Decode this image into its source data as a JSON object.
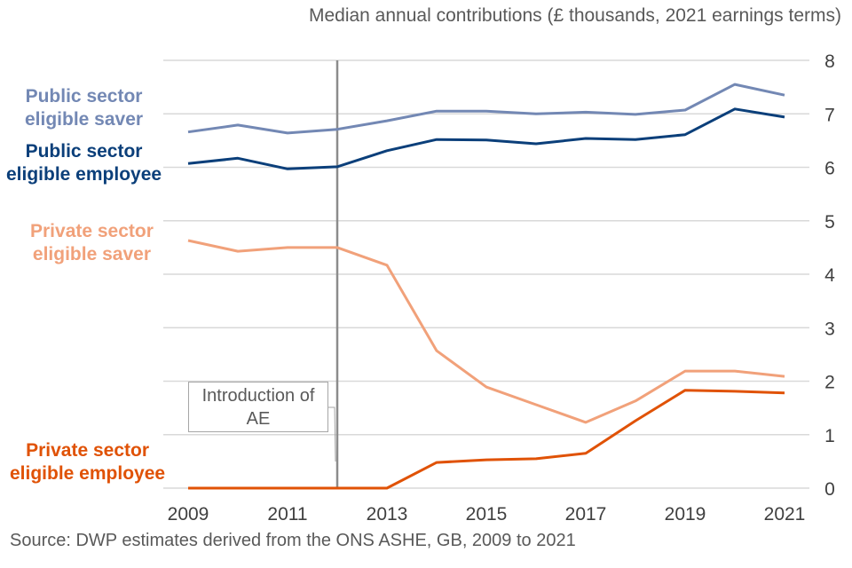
{
  "chart_data": {
    "type": "line",
    "title": "",
    "ylabel": "Median annual contributions (£ thousands, 2021 earnings terms)",
    "xlabel": "",
    "source": "Source: DWP estimates derived from the ONS ASHE, GB, 2009 to 2021",
    "x": [
      2009,
      2010,
      2011,
      2012,
      2013,
      2014,
      2015,
      2016,
      2017,
      2018,
      2019,
      2020,
      2021
    ],
    "x_tick_labels": [
      "2009",
      "2011",
      "2013",
      "2015",
      "2017",
      "2019",
      "2021"
    ],
    "y_tick_labels": [
      "0",
      "1",
      "2",
      "3",
      "4",
      "5",
      "6",
      "7",
      "8"
    ],
    "ylim": [
      0,
      8
    ],
    "grid": true,
    "y_axis_side": "right",
    "legend": "inline-left",
    "series": [
      {
        "name": "Public sector eligible saver",
        "label_lines": [
          "Public sector",
          "eligible saver"
        ],
        "color": "#7388b4",
        "values": [
          6.66,
          6.79,
          6.64,
          6.71,
          6.87,
          7.05,
          7.05,
          7.0,
          7.03,
          6.99,
          7.07,
          7.55,
          7.35
        ]
      },
      {
        "name": "Public sector eligible employee",
        "label_lines": [
          "Public sector",
          "eligible employee"
        ],
        "color": "#0b3f7a",
        "values": [
          6.07,
          6.17,
          5.97,
          6.01,
          6.31,
          6.52,
          6.51,
          6.44,
          6.54,
          6.52,
          6.61,
          7.09,
          6.94
        ]
      },
      {
        "name": "Private sector eligible saver",
        "label_lines": [
          "Private sector",
          "eligible saver"
        ],
        "color": "#f1a17a",
        "values": [
          4.63,
          4.43,
          4.5,
          4.5,
          4.17,
          2.57,
          1.89,
          1.56,
          1.23,
          1.63,
          2.19,
          2.19,
          2.09
        ]
      },
      {
        "name": "Private sector eligible employee",
        "label_lines": [
          "Private sector",
          "eligible employee"
        ],
        "color": "#e05206",
        "values": [
          0,
          0,
          0,
          0,
          0,
          0.48,
          0.53,
          0.55,
          0.65,
          1.26,
          1.83,
          1.81,
          1.78
        ]
      }
    ],
    "annotations": [
      {
        "type": "vertical-line",
        "x": 2012,
        "color": "#8c8c8c",
        "text_lines": [
          "Introduction of",
          "AE"
        ]
      }
    ]
  }
}
